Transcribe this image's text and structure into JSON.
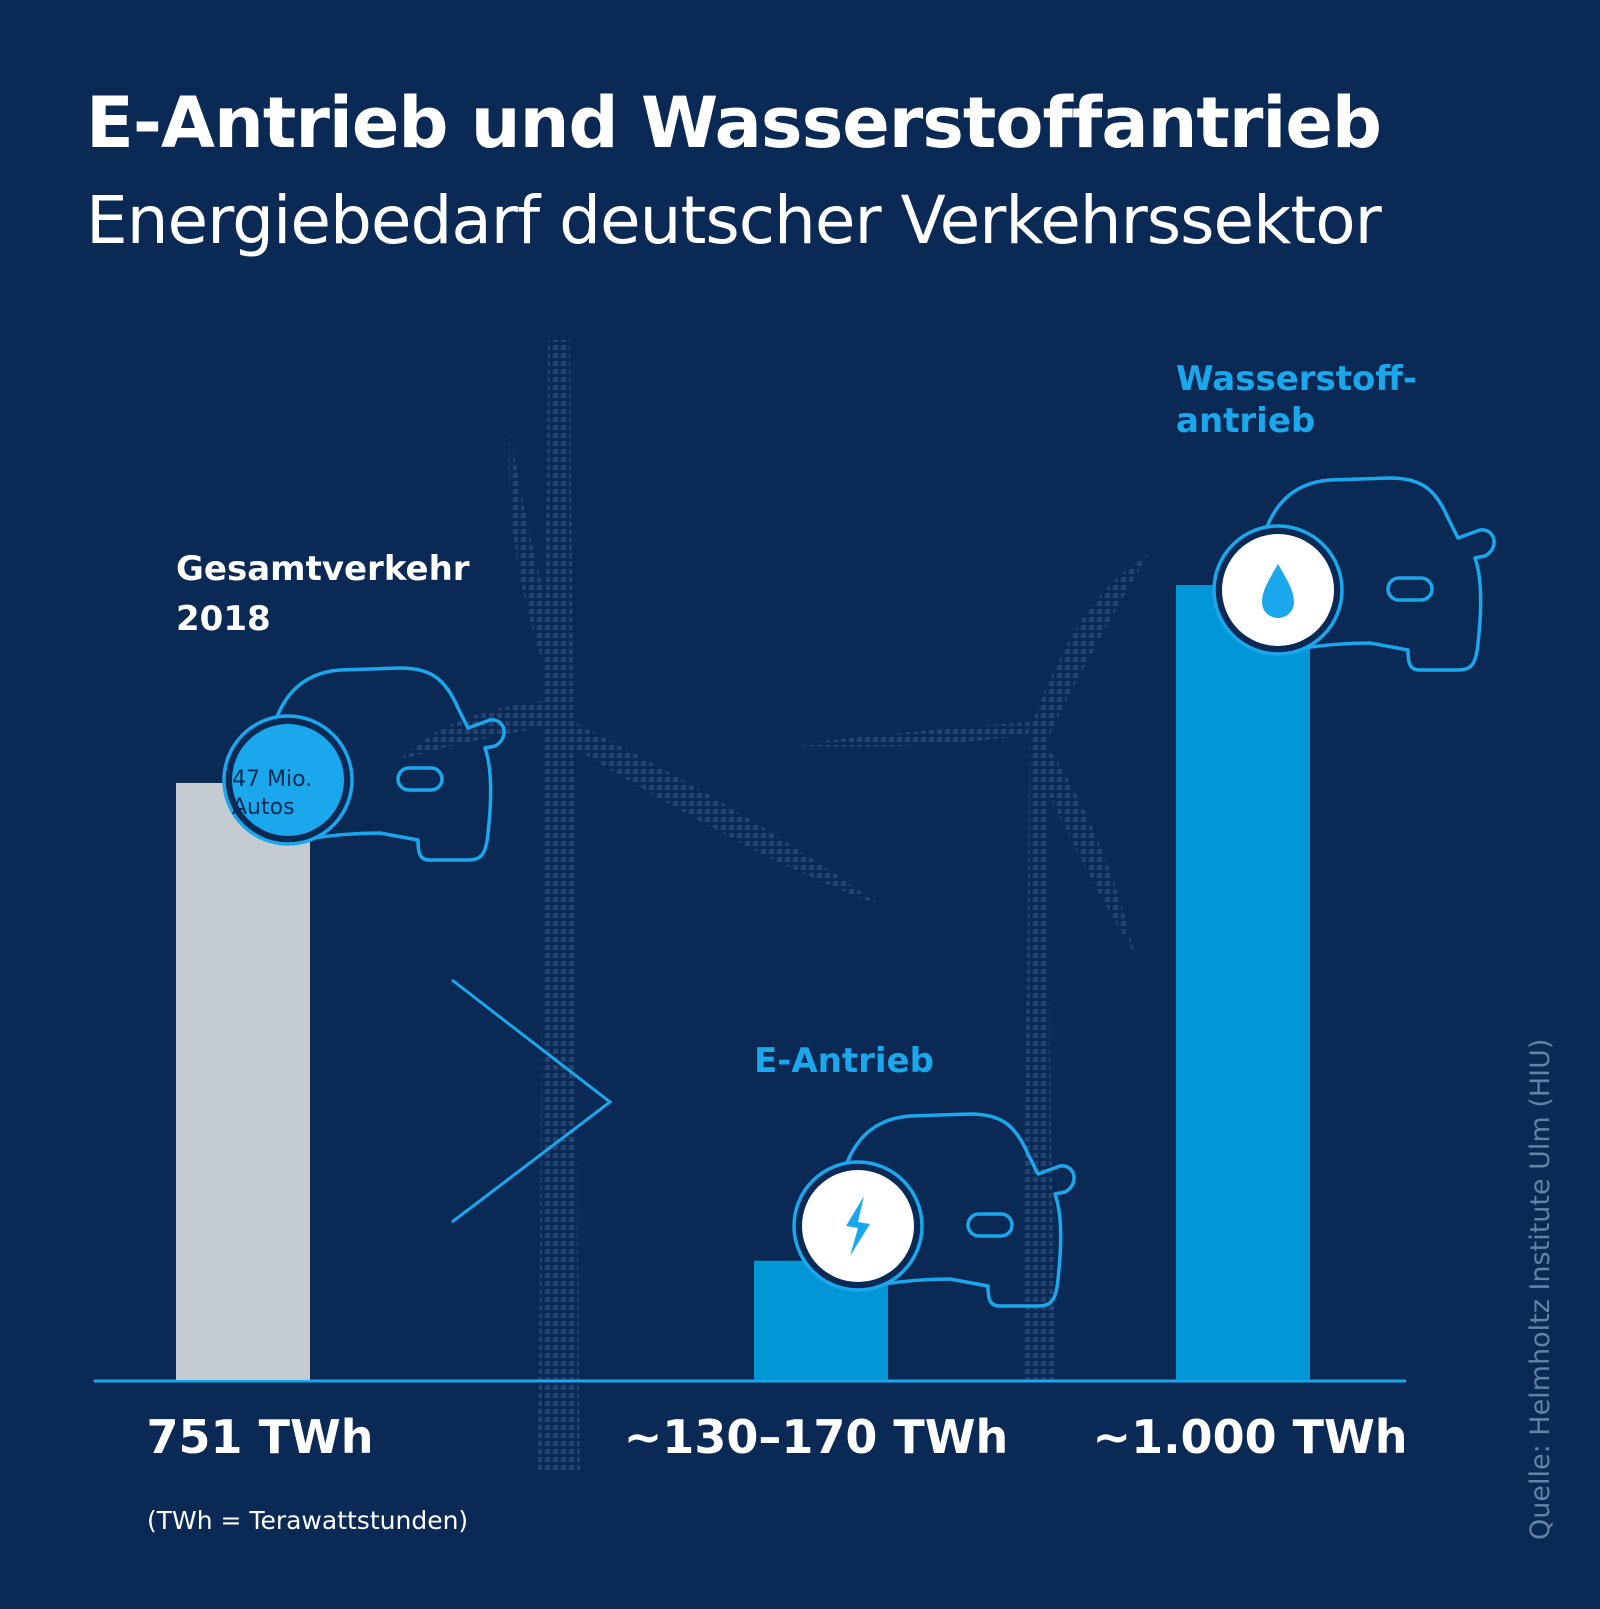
{
  "title": "E-Antrieb und Wasserstoffantrieb",
  "subtitle": "Energiebedarf deutscher Verkehrssektor",
  "colors": {
    "background": "#0a2a55",
    "bar_gray": "#c4cbd2",
    "bar_blue": "#0196d6",
    "accent": "#1aa7ec",
    "white": "#ffffff"
  },
  "chart_data": {
    "type": "bar",
    "unit": "TWh",
    "categories": [
      "Gesamtverkehr 2018",
      "E-Antrieb",
      "Wasserstoffantrieb"
    ],
    "values": [
      751,
      150,
      1000
    ],
    "ranges": [
      null,
      [
        130,
        170
      ],
      null
    ],
    "value_labels": [
      "751 TWh",
      "~130–170 TWh",
      "~1.000 TWh"
    ],
    "ylim": [
      0,
      1000
    ]
  },
  "categories_display": {
    "gesamt_line1": "Gesamtverkehr",
    "gesamt_line2": "2018",
    "e_antrieb": "E-Antrieb",
    "h2_line1": "Wasserstoff-",
    "h2_line2": "antrieb"
  },
  "badge": {
    "line1": "47 Mio.",
    "line2": "Autos"
  },
  "icons": [
    "car-outline-icon",
    "lightning-icon",
    "water-drop-icon",
    "wind-turbine-icon",
    "chevron-right-icon"
  ],
  "footnote": "(TWh = Terawattstunden)",
  "source": "Quelle: Helmholtz Institute Ulm (HIU)"
}
